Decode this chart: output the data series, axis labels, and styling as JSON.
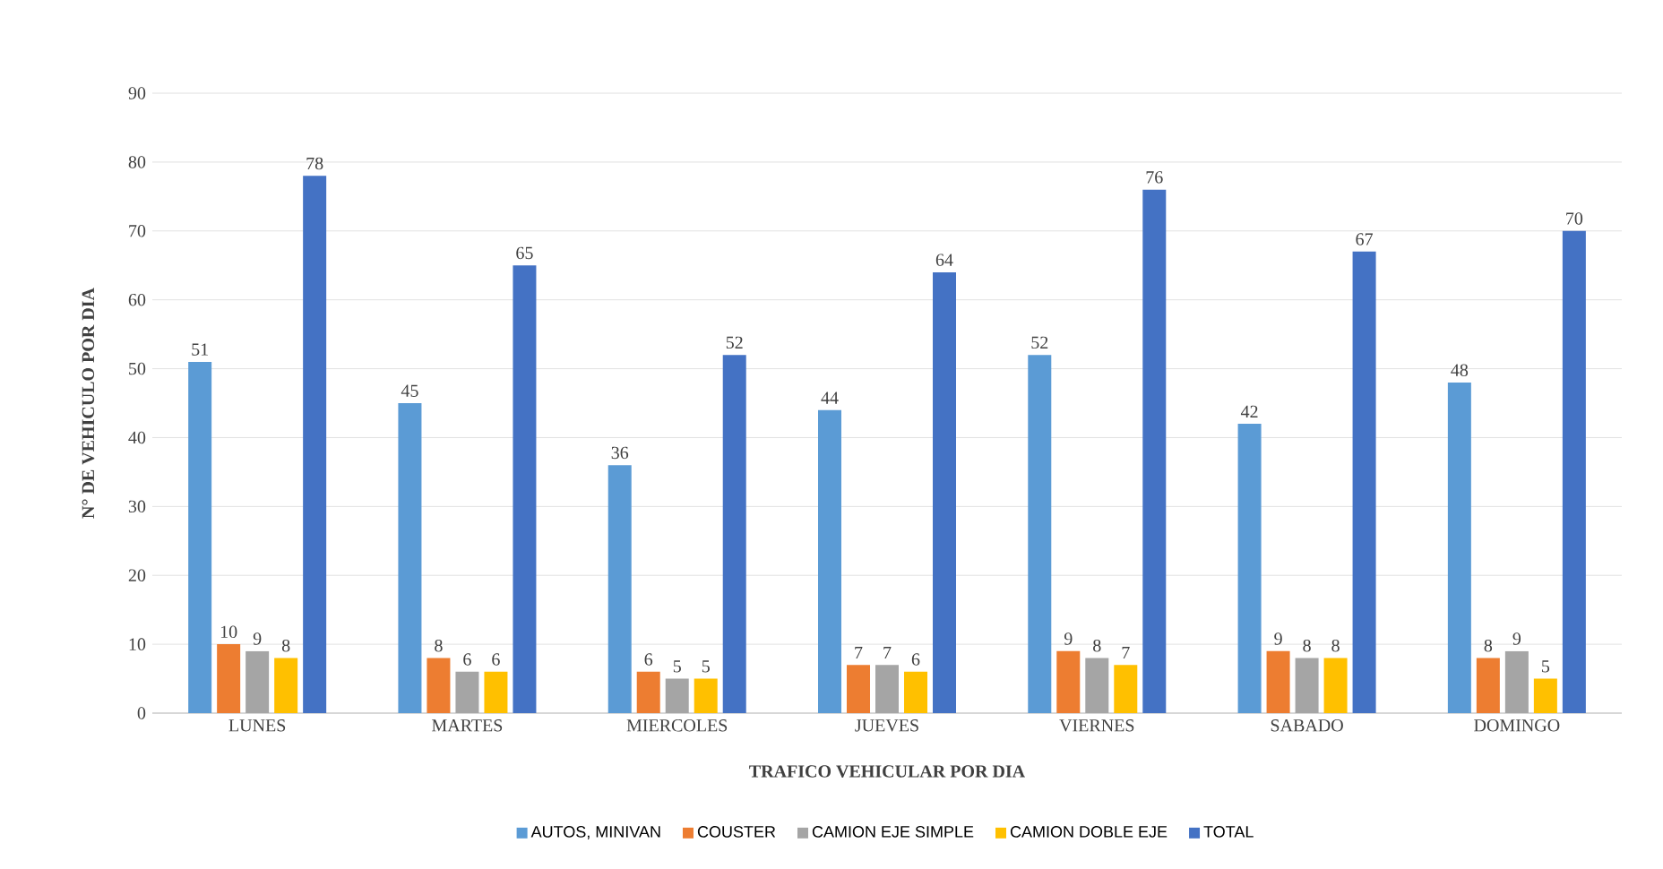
{
  "chart_data": {
    "type": "bar",
    "xlabel": "TRAFICO  VEHICULAR  POR DIA",
    "ylabel": "N° DE VEHICULO  POR DIA",
    "categories": [
      "LUNES",
      "MARTES",
      "MIERCOLES",
      "JUEVES",
      "VIERNES",
      "SABADO",
      "DOMINGO"
    ],
    "series": [
      {
        "name": "AUTOS, MINIVAN",
        "color": "#5b9bd5",
        "values": [
          51,
          45,
          36,
          44,
          52,
          42,
          48
        ]
      },
      {
        "name": "COUSTER",
        "color": "#ed7d31",
        "values": [
          10,
          8,
          6,
          7,
          9,
          9,
          8
        ]
      },
      {
        "name": "CAMION EJE SIMPLE",
        "color": "#a5a5a5",
        "values": [
          9,
          6,
          5,
          7,
          8,
          8,
          9
        ]
      },
      {
        "name": "CAMION DOBLE EJE",
        "color": "#ffc000",
        "values": [
          8,
          6,
          5,
          6,
          7,
          8,
          5
        ]
      },
      {
        "name": "TOTAL",
        "color": "#4472c4",
        "values": [
          78,
          65,
          52,
          64,
          76,
          67,
          70
        ]
      }
    ],
    "ylim": [
      0,
      90
    ],
    "yticks": [
      0,
      10,
      20,
      30,
      40,
      50,
      60,
      70,
      80,
      90
    ],
    "grid": "y",
    "legend": "bottom",
    "data_labels": true
  }
}
